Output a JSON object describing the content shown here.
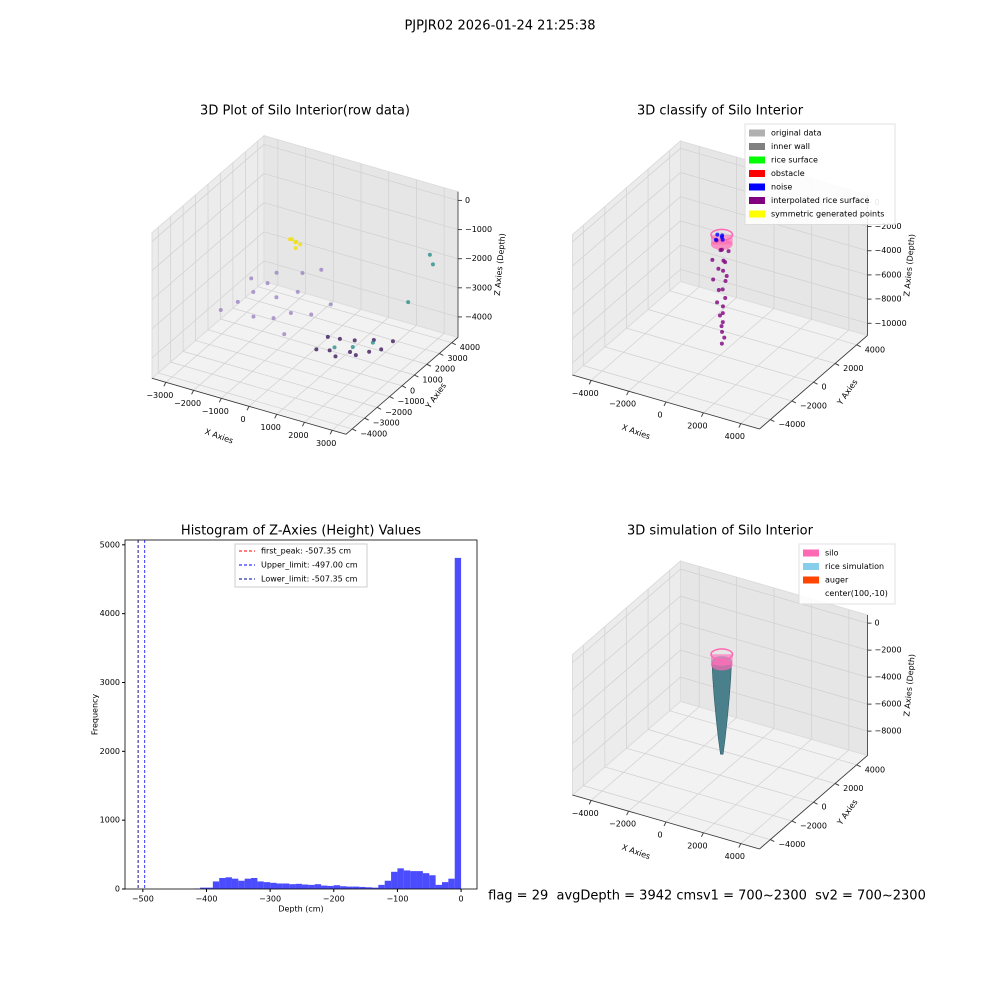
{
  "title": "PJPJR02 2026-01-24 21:25:38",
  "footer": "flag = 29  avgDepth = 3942 cmsv1 = 700~2300  sv2 = 700~2300",
  "chart_data": [
    {
      "type": "scatter3d",
      "title": "3D Plot of Silo Interior(row data)",
      "xlabel": "X Axies",
      "ylabel": "Y Axies",
      "zlabel": "Z Axies (Depth)",
      "xlim": [
        -3500,
        3500
      ],
      "ylim": [
        -4500,
        4500
      ],
      "zlim": [
        -4700,
        300
      ],
      "xticks": [
        {
          "value": -3000,
          "label": "−3000"
        },
        {
          "value": -2000,
          "label": "−2000"
        },
        {
          "value": -1000,
          "label": "−1000"
        },
        0,
        1000,
        2000,
        3000
      ],
      "yticks": [
        {
          "value": -4000,
          "label": "−4000"
        },
        {
          "value": -3000,
          "label": "−3000"
        },
        {
          "value": -2000,
          "label": "−2000"
        },
        {
          "value": -1000,
          "label": "−1000"
        },
        0,
        1000,
        2000,
        3000,
        4000
      ],
      "zticks": [
        0,
        {
          "value": -1000,
          "label": "−1000"
        },
        {
          "value": -2000,
          "label": "−2000"
        },
        {
          "value": -3000,
          "label": "−3000"
        },
        {
          "value": -4000,
          "label": "−4000"
        }
      ],
      "series": [
        {
          "color": "#9a84c0",
          "x": [
            -2500,
            -2200,
            -2000,
            -1800,
            -1500,
            -1300,
            -1000,
            -800,
            -600,
            -300,
            0,
            300,
            -1700,
            -900,
            -400,
            -2300
          ],
          "y": [
            -1200,
            -500,
            300,
            1000,
            -800,
            600,
            -300,
            1200,
            200,
            -1000,
            500,
            1400,
            1500,
            1800,
            2200,
            800
          ],
          "z": [
            -3300,
            -3200,
            -3100,
            -3000,
            -3400,
            -3200,
            -3500,
            -3100,
            -3400,
            -3600,
            -3400,
            -3300,
            -2800,
            -2700,
            -2600,
            -2900
          ]
        },
        {
          "color": "#3d1a5c",
          "x": [
            500,
            800,
            1100,
            1400,
            1700,
            2000,
            2300,
            900,
            1300,
            1900,
            600,
            2500
          ],
          "y": [
            -200,
            200,
            0,
            500,
            300,
            700,
            1000,
            800,
            1100,
            1300,
            500,
            1500
          ],
          "z": [
            -4200,
            -4300,
            -4350,
            -4300,
            -4250,
            -4200,
            -4150,
            -4100,
            -4150,
            -4050,
            -4000,
            -4000
          ]
        },
        {
          "color": "#2a8f8a",
          "x": [
            2800,
            3000,
            2600,
            1500,
            2000,
            1200
          ],
          "y": [
            3800,
            3600,
            2500,
            500,
            1000,
            -300
          ],
          "z": [
            -1800,
            -2000,
            -3000,
            -4100,
            -4000,
            -3900
          ]
        },
        {
          "color": "#f0e010",
          "x": [
            -600,
            -500,
            -400,
            -700,
            -550,
            -450
          ],
          "y": [
            300,
            400,
            500,
            350,
            450,
            250
          ],
          "z": [
            -900,
            -1000,
            -1100,
            -950,
            -1050,
            -1150
          ]
        }
      ]
    },
    {
      "type": "scatter3d",
      "title": "3D classify of Silo Interior",
      "xlabel": "X Axies",
      "ylabel": "Y Axies",
      "zlabel": "Z Axies (Depth)",
      "xlim": [
        -5000,
        5000
      ],
      "ylim": [
        -5000,
        5000
      ],
      "zlim": [
        -11000,
        600
      ],
      "xticks": [
        {
          "value": -4000,
          "label": "−4000"
        },
        {
          "value": -2000,
          "label": "−2000"
        },
        0,
        2000,
        4000
      ],
      "yticks": [
        {
          "value": -4000,
          "label": "−4000"
        },
        {
          "value": -2000,
          "label": "−2000"
        },
        0,
        2000,
        4000
      ],
      "zticks": [
        0,
        {
          "value": -2000,
          "label": "−2000"
        },
        {
          "value": -4000,
          "label": "−4000"
        },
        {
          "value": -6000,
          "label": "−6000"
        },
        {
          "value": -8000,
          "label": "−8000"
        },
        {
          "value": -10000,
          "label": "−10000"
        }
      ],
      "legend": [
        {
          "name": "original data",
          "color": "#b0b0b0"
        },
        {
          "name": "inner wall",
          "color": "#808080"
        },
        {
          "name": "rice surface",
          "color": "#00ff00"
        },
        {
          "name": "obstacle",
          "color": "#ff0000"
        },
        {
          "name": "noise",
          "color": "#0000ff"
        },
        {
          "name": "interpolated rice surface",
          "color": "#800080"
        },
        {
          "name": "symmetric generated points",
          "color": "#ffff00"
        }
      ],
      "silo": {
        "center": [
          100,
          -10
        ],
        "radius": 500,
        "z": [
          -1000,
          -1800
        ],
        "color": "#ff69b4"
      },
      "series": [
        {
          "color": "#800080",
          "x": [
            -300,
            200,
            400,
            -100,
            300,
            -350,
            100,
            250,
            -200,
            300,
            -250,
            150,
            200,
            -150,
            250,
            -100,
            100,
            180,
            -50,
            150,
            60,
            120,
            200,
            100
          ],
          "y": [
            200,
            -300,
            100,
            350,
            -200,
            -100,
            300,
            -150,
            200,
            100,
            -200,
            250,
            -100,
            150,
            50,
            -100,
            100,
            -50,
            80,
            0,
            40,
            -20,
            50,
            0
          ],
          "z": [
            -1800,
            -2000,
            -2300,
            -2600,
            -2900,
            -3200,
            -3500,
            -3800,
            -4100,
            -4400,
            -4700,
            -5000,
            -5400,
            -5800,
            -6200,
            -6600,
            -7000,
            -7400,
            -7800,
            -8200,
            -8600,
            -9000,
            -9500,
            -10000
          ]
        },
        {
          "color": "#0000ff",
          "x": [
            -200,
            0,
            200,
            100,
            -100
          ],
          "y": [
            100,
            200,
            -100,
            0,
            -200
          ],
          "z": [
            -1200,
            -1250,
            -1300,
            -1200,
            -1350
          ]
        }
      ]
    },
    {
      "type": "histogram",
      "title": "Histogram of Z-Axies (Height) Values",
      "xlabel": "Depth (cm)",
      "ylabel": "Frequency",
      "color": "#0000ff",
      "xlim": [
        -528,
        25
      ],
      "ylim": [
        0,
        5070
      ],
      "xticks": [
        {
          "value": -500,
          "label": "−500"
        },
        {
          "value": -400,
          "label": "−400"
        },
        {
          "value": -300,
          "label": "−300"
        },
        {
          "value": -200,
          "label": "−200"
        },
        {
          "value": -100,
          "label": "−100"
        },
        0
      ],
      "yticks": [
        0,
        1000,
        2000,
        3000,
        4000,
        5000
      ],
      "bins": [
        -420,
        -410,
        -400,
        -390,
        -380,
        -370,
        -360,
        -350,
        -340,
        -330,
        -320,
        -310,
        -300,
        -290,
        -280,
        -270,
        -260,
        -250,
        -240,
        -230,
        -220,
        -210,
        -200,
        -190,
        -180,
        -170,
        -160,
        -150,
        -140,
        -130,
        -120,
        -110,
        -100,
        -90,
        -80,
        -70,
        -60,
        -50,
        -40,
        -30,
        -20,
        -10,
        0
      ],
      "values": [
        5,
        20,
        20,
        110,
        160,
        170,
        150,
        120,
        150,
        160,
        110,
        100,
        90,
        80,
        80,
        70,
        75,
        65,
        60,
        70,
        50,
        45,
        55,
        40,
        35,
        35,
        30,
        25,
        20,
        60,
        120,
        250,
        300,
        270,
        260,
        260,
        230,
        200,
        60,
        100,
        150,
        4810
      ],
      "vlines": [
        {
          "label": "first_peak: -507.35 cm",
          "value": -507.35,
          "color": "#ff0000"
        },
        {
          "label": "Upper_limit: -497.00 cm",
          "value": -497,
          "color": "#0000ff"
        },
        {
          "label": "Lower_limit: -507.35 cm",
          "value": -507.35,
          "color": "#00008b"
        }
      ]
    },
    {
      "type": "surface3d",
      "title": "3D simulation of Silo Interior",
      "xlabel": "X Axies",
      "ylabel": "Y Axies",
      "zlabel": "Z Axies (Depth)",
      "xlim": [
        -5000,
        5000
      ],
      "ylim": [
        -5000,
        5000
      ],
      "zlim": [
        -9800,
        600
      ],
      "xticks": [
        {
          "value": -4000,
          "label": "−4000"
        },
        {
          "value": -2000,
          "label": "−2000"
        },
        0,
        2000,
        4000
      ],
      "yticks": [
        {
          "value": -4000,
          "label": "−4000"
        },
        {
          "value": -2000,
          "label": "−2000"
        },
        0,
        2000,
        4000
      ],
      "zticks": [
        0,
        {
          "value": -2000,
          "label": "−2000"
        },
        {
          "value": -4000,
          "label": "−4000"
        },
        {
          "value": -6000,
          "label": "−6000"
        },
        {
          "value": -8000,
          "label": "−8000"
        }
      ],
      "legend": [
        {
          "name": "silo",
          "color": "#ff69b4"
        },
        {
          "name": "rice simulation",
          "color": "#87ceeb"
        },
        {
          "name": "auger",
          "color": "#ff4500"
        },
        {
          "name": "center(100,-10)"
        }
      ],
      "silo": {
        "center": [
          100,
          -10
        ],
        "radius": 500,
        "z": [
          -800,
          -1600
        ],
        "color": "#ff69b4"
      },
      "rice": {
        "color": "#4a7f8c",
        "z": [
          -1300,
          -2500,
          -4000,
          -5500,
          -7000,
          -8200
        ],
        "radius": [
          450,
          420,
          350,
          260,
          160,
          60
        ]
      }
    }
  ]
}
